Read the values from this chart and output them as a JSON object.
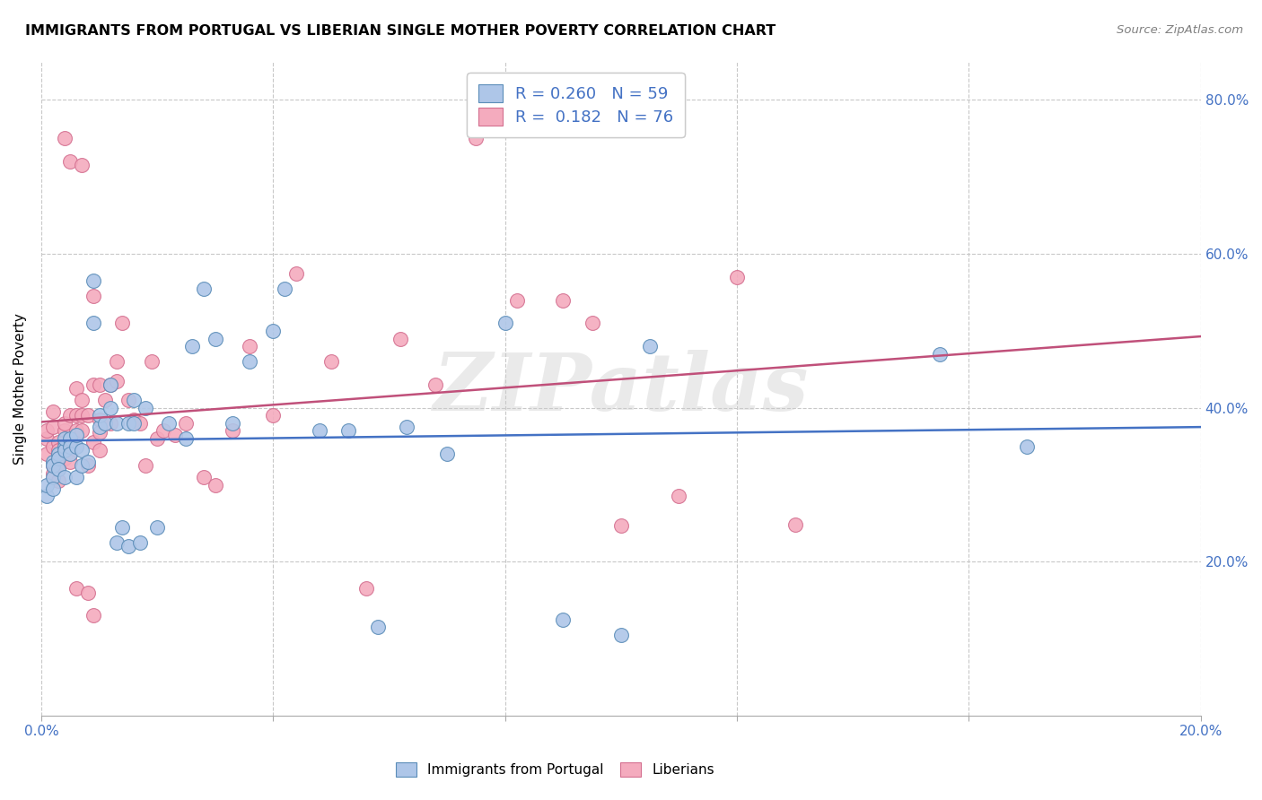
{
  "title": "IMMIGRANTS FROM PORTUGAL VS LIBERIAN SINGLE MOTHER POVERTY CORRELATION CHART",
  "source": "Source: ZipAtlas.com",
  "ylabel": "Single Mother Poverty",
  "x_min": 0.0,
  "x_max": 0.2,
  "y_min": 0.0,
  "y_max": 0.85,
  "y_ticks": [
    0.2,
    0.4,
    0.6,
    0.8
  ],
  "y_tick_labels": [
    "20.0%",
    "40.0%",
    "60.0%",
    "80.0%"
  ],
  "blue_R": 0.26,
  "blue_N": 59,
  "pink_R": 0.182,
  "pink_N": 76,
  "blue_color": "#AEC6E8",
  "pink_color": "#F4ABBE",
  "blue_edge_color": "#5B8DB8",
  "pink_edge_color": "#D47090",
  "blue_line_color": "#4472C4",
  "pink_line_color": "#C0507A",
  "legend_label_blue": "Immigrants from Portugal",
  "legend_label_pink": "Liberians",
  "watermark": "ZIPatlas",
  "blue_points_x": [
    0.001,
    0.001,
    0.002,
    0.002,
    0.002,
    0.002,
    0.003,
    0.003,
    0.003,
    0.004,
    0.004,
    0.004,
    0.004,
    0.005,
    0.005,
    0.005,
    0.006,
    0.006,
    0.006,
    0.007,
    0.007,
    0.008,
    0.009,
    0.009,
    0.01,
    0.01,
    0.011,
    0.012,
    0.012,
    0.013,
    0.013,
    0.014,
    0.015,
    0.015,
    0.016,
    0.016,
    0.017,
    0.018,
    0.02,
    0.022,
    0.025,
    0.026,
    0.028,
    0.03,
    0.033,
    0.036,
    0.04,
    0.042,
    0.048,
    0.053,
    0.058,
    0.063,
    0.07,
    0.08,
    0.09,
    0.1,
    0.105,
    0.155,
    0.17
  ],
  "blue_points_y": [
    0.285,
    0.3,
    0.31,
    0.295,
    0.33,
    0.325,
    0.34,
    0.335,
    0.32,
    0.35,
    0.345,
    0.36,
    0.31,
    0.36,
    0.35,
    0.34,
    0.35,
    0.365,
    0.31,
    0.325,
    0.345,
    0.33,
    0.51,
    0.565,
    0.375,
    0.39,
    0.38,
    0.43,
    0.4,
    0.38,
    0.225,
    0.245,
    0.38,
    0.22,
    0.38,
    0.41,
    0.225,
    0.4,
    0.245,
    0.38,
    0.36,
    0.48,
    0.555,
    0.49,
    0.38,
    0.46,
    0.5,
    0.555,
    0.37,
    0.37,
    0.115,
    0.375,
    0.34,
    0.51,
    0.125,
    0.105,
    0.48,
    0.47,
    0.35
  ],
  "pink_points_x": [
    0.001,
    0.001,
    0.001,
    0.002,
    0.002,
    0.002,
    0.002,
    0.002,
    0.003,
    0.003,
    0.003,
    0.003,
    0.004,
    0.004,
    0.004,
    0.004,
    0.004,
    0.005,
    0.005,
    0.005,
    0.005,
    0.006,
    0.006,
    0.006,
    0.007,
    0.007,
    0.007,
    0.008,
    0.008,
    0.009,
    0.009,
    0.009,
    0.01,
    0.01,
    0.01,
    0.011,
    0.012,
    0.012,
    0.013,
    0.013,
    0.014,
    0.015,
    0.016,
    0.017,
    0.018,
    0.019,
    0.02,
    0.021,
    0.023,
    0.025,
    0.028,
    0.03,
    0.033,
    0.036,
    0.04,
    0.044,
    0.05,
    0.056,
    0.062,
    0.068,
    0.075,
    0.082,
    0.09,
    0.095,
    0.1,
    0.11,
    0.12,
    0.13,
    0.003,
    0.004,
    0.005,
    0.006,
    0.007,
    0.008,
    0.009,
    0.01
  ],
  "pink_points_y": [
    0.36,
    0.34,
    0.37,
    0.35,
    0.325,
    0.315,
    0.375,
    0.395,
    0.355,
    0.345,
    0.325,
    0.305,
    0.37,
    0.355,
    0.335,
    0.38,
    0.345,
    0.39,
    0.355,
    0.34,
    0.33,
    0.39,
    0.37,
    0.425,
    0.37,
    0.39,
    0.41,
    0.39,
    0.325,
    0.43,
    0.355,
    0.13,
    0.43,
    0.385,
    0.345,
    0.41,
    0.38,
    0.43,
    0.435,
    0.46,
    0.51,
    0.41,
    0.385,
    0.38,
    0.325,
    0.46,
    0.36,
    0.37,
    0.365,
    0.38,
    0.31,
    0.3,
    0.37,
    0.48,
    0.39,
    0.575,
    0.46,
    0.165,
    0.49,
    0.43,
    0.75,
    0.54,
    0.54,
    0.51,
    0.247,
    0.286,
    0.57,
    0.248,
    0.32,
    0.75,
    0.72,
    0.165,
    0.715,
    0.16,
    0.545,
    0.368
  ]
}
